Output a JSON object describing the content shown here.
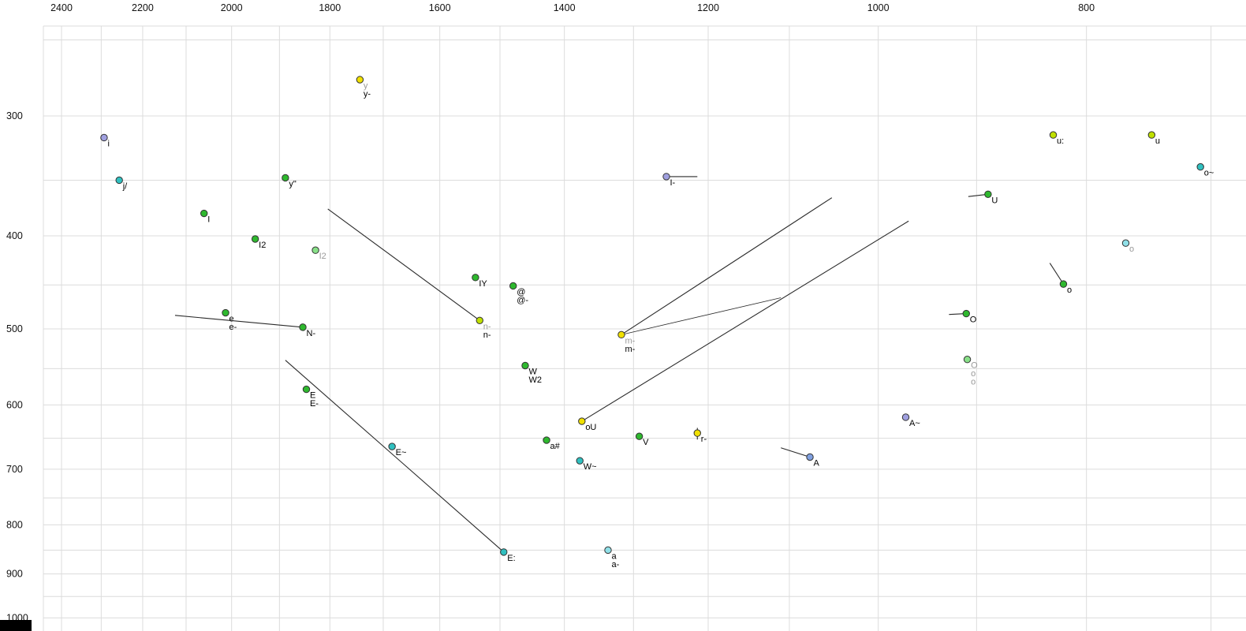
{
  "chart_data": {
    "type": "scatter",
    "title": "",
    "xlabel": "",
    "ylabel": "",
    "x_axis": {
      "scale": "log",
      "reversed": true,
      "ticks": [
        2400,
        2200,
        2000,
        1800,
        1600,
        1400,
        1200,
        1000,
        800
      ],
      "minor_gridline_step": 100,
      "minor_gridline_range": [
        2400,
        700
      ]
    },
    "y_axis": {
      "scale": "log",
      "reversed": false,
      "ticks": [
        300,
        400,
        500,
        600,
        700,
        800,
        900,
        1000
      ],
      "minor_gridline_step": 50,
      "minor_gridline_range": [
        250,
        1000
      ]
    },
    "grid": true,
    "legend": "none",
    "palette": {
      "green": "#2eb82e",
      "lightgreen": "#88e088",
      "yellow": "#f0e000",
      "yellowgreen": "#c0e000",
      "cyan": "#30c0c0",
      "lightcyan": "#90e0e8",
      "blue": "#80a0e0",
      "lavender": "#a0a0e0",
      "gray_label": "#9a9a9a",
      "black_label": "#000000",
      "grid_color": "#dcdcdc",
      "line_color": "#2a2a2a",
      "dot_stroke": "#333333",
      "axis_text": "#111111",
      "corner_box": "#000000"
    },
    "points": [
      {
        "labels": [
          {
            "t": "y",
            "c": "gray"
          },
          {
            "t": "y-",
            "c": "black"
          }
        ],
        "f2": 1743,
        "f1": 275,
        "color": "yellow"
      },
      {
        "labels": [
          {
            "t": "i",
            "c": "black"
          }
        ],
        "f2": 2293,
        "f1": 316,
        "color": "lavender"
      },
      {
        "labels": [
          {
            "t": "j/",
            "c": "black"
          }
        ],
        "f2": 2256,
        "f1": 350,
        "color": "cyan"
      },
      {
        "labels": [
          {
            "t": "y\"",
            "c": "black"
          }
        ],
        "f2": 1888,
        "f1": 348,
        "color": "green"
      },
      {
        "labels": [
          {
            "t": "I",
            "c": "black"
          }
        ],
        "f2": 2060,
        "f1": 379,
        "color": "green"
      },
      {
        "labels": [
          {
            "t": "I2",
            "c": "black"
          }
        ],
        "f2": 1950,
        "f1": 403,
        "color": "green"
      },
      {
        "labels": [
          {
            "t": "I2",
            "c": "gray"
          }
        ],
        "f2": 1828,
        "f1": 414,
        "color": "lightgreen"
      },
      {
        "labels": [
          {
            "t": "IY",
            "c": "black"
          }
        ],
        "f2": 1540,
        "f1": 442,
        "color": "green"
      },
      {
        "labels": [
          {
            "t": "@",
            "c": "black"
          },
          {
            "t": "@-",
            "c": "black"
          }
        ],
        "f2": 1479,
        "f1": 451,
        "color": "green"
      },
      {
        "labels": [
          {
            "t": "n-",
            "c": "gray"
          },
          {
            "t": "n-",
            "c": "black"
          }
        ],
        "f2": 1533,
        "f1": 490,
        "color": "yellowgreen"
      },
      {
        "labels": [
          {
            "t": "e",
            "c": "black"
          },
          {
            "t": "e-",
            "c": "black"
          }
        ],
        "f2": 2013,
        "f1": 481,
        "color": "green"
      },
      {
        "labels": [
          {
            "t": "N-",
            "c": "black"
          }
        ],
        "f2": 1853,
        "f1": 498,
        "color": "green"
      },
      {
        "labels": [
          {
            "t": "E",
            "c": "black"
          },
          {
            "t": "E-",
            "c": "black"
          }
        ],
        "f2": 1846,
        "f1": 578,
        "color": "green"
      },
      {
        "labels": [
          {
            "t": "E~",
            "c": "black"
          }
        ],
        "f2": 1684,
        "f1": 663,
        "color": "cyan"
      },
      {
        "labels": [
          {
            "t": "E:",
            "c": "black"
          }
        ],
        "f2": 1494,
        "f1": 854,
        "color": "cyan"
      },
      {
        "labels": [
          {
            "t": "W",
            "c": "black"
          },
          {
            "t": "W2",
            "c": "black"
          }
        ],
        "f2": 1460,
        "f1": 546,
        "color": "green"
      },
      {
        "labels": [
          {
            "t": "a#",
            "c": "black"
          }
        ],
        "f2": 1427,
        "f1": 653,
        "color": "green"
      },
      {
        "labels": [
          {
            "t": "W~",
            "c": "black"
          }
        ],
        "f2": 1377,
        "f1": 686,
        "color": "cyan"
      },
      {
        "labels": [
          {
            "t": "oU",
            "c": "black"
          }
        ],
        "f2": 1374,
        "f1": 624,
        "color": "yellow"
      },
      {
        "labels": [
          {
            "t": "a",
            "c": "black"
          },
          {
            "t": "a-",
            "c": "black"
          }
        ],
        "f2": 1336,
        "f1": 850,
        "color": "lightcyan"
      },
      {
        "labels": [
          {
            "t": "V",
            "c": "black"
          }
        ],
        "f2": 1292,
        "f1": 647,
        "color": "green"
      },
      {
        "labels": [
          {
            "t": "m-",
            "c": "gray"
          },
          {
            "t": "m-",
            "c": "black"
          }
        ],
        "f2": 1317,
        "f1": 507,
        "color": "yellow"
      },
      {
        "labels": [
          {
            "t": "r-",
            "c": "black"
          }
        ],
        "f2": 1214,
        "f1": 642,
        "color": "yellow"
      },
      {
        "labels": [
          {
            "t": "I-",
            "c": "black"
          }
        ],
        "f2": 1255,
        "f1": 347,
        "color": "lavender"
      },
      {
        "labels": [
          {
            "t": "A",
            "c": "black"
          }
        ],
        "f2": 1076,
        "f1": 680,
        "color": "blue"
      },
      {
        "labels": [
          {
            "t": "A~",
            "c": "black"
          }
        ],
        "f2": 971,
        "f1": 618,
        "color": "lavender"
      },
      {
        "labels": [
          {
            "t": "u:",
            "c": "black"
          }
        ],
        "f2": 829,
        "f1": 314,
        "color": "yellowgreen"
      },
      {
        "labels": [
          {
            "t": "u",
            "c": "black"
          }
        ],
        "f2": 746,
        "f1": 314,
        "color": "yellowgreen"
      },
      {
        "labels": [
          {
            "t": "o~",
            "c": "black"
          }
        ],
        "f2": 708,
        "f1": 339,
        "color": "cyan"
      },
      {
        "labels": [
          {
            "t": "U",
            "c": "black"
          }
        ],
        "f2": 889,
        "f1": 362,
        "color": "green"
      },
      {
        "labels": [
          {
            "t": "o",
            "c": "gray"
          }
        ],
        "f2": 767,
        "f1": 407,
        "color": "lightcyan"
      },
      {
        "labels": [
          {
            "t": "o",
            "c": "black"
          }
        ],
        "f2": 820,
        "f1": 449,
        "color": "green"
      },
      {
        "labels": [
          {
            "t": "O",
            "c": "black"
          }
        ],
        "f2": 910,
        "f1": 482,
        "color": "green"
      },
      {
        "labels": [
          {
            "t": "O",
            "c": "gray"
          },
          {
            "t": "o",
            "c": "gray"
          },
          {
            "t": "o",
            "c": "gray"
          }
        ],
        "f2": 909,
        "f1": 538,
        "color": "lightgreen"
      }
    ],
    "segments": [
      {
        "from": [
          1804,
          375
        ],
        "to": [
          1533,
          490
        ]
      },
      {
        "from": [
          2125,
          484
        ],
        "to": [
          1853,
          498
        ]
      },
      {
        "from": [
          1888,
          539
        ],
        "to": [
          1494,
          854
        ]
      },
      {
        "from": [
          1317,
          507
        ],
        "to": [
          1051,
          365
        ]
      },
      {
        "from": [
          1374,
          624
        ],
        "to": [
          968,
          386
        ]
      },
      {
        "from": [
          1317,
          507
        ],
        "to": [
          1110,
          464
        ],
        "thin": true
      },
      {
        "from": [
          1255,
          347
        ],
        "to": [
          1214,
          347
        ]
      },
      {
        "from": [
          908,
          364
        ],
        "to": [
          889,
          362
        ]
      },
      {
        "from": [
          927,
          483
        ],
        "to": [
          910,
          482
        ]
      },
      {
        "from": [
          832,
          427
        ],
        "to": [
          820,
          449
        ]
      },
      {
        "from": [
          1110,
          665
        ],
        "to": [
          1076,
          680
        ]
      },
      {
        "from": [
          1214,
          634
        ],
        "to": [
          1214,
          652
        ]
      }
    ]
  }
}
